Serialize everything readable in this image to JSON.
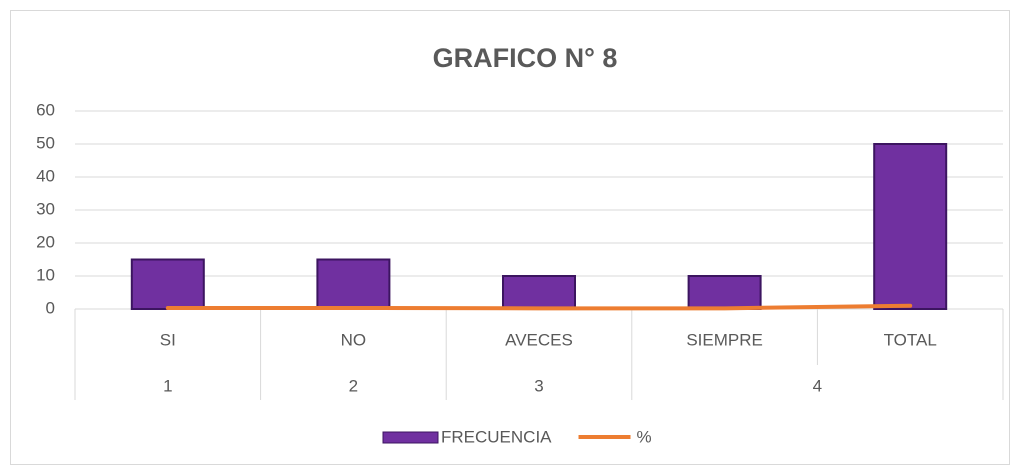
{
  "chart_data": {
    "type": "bar-line",
    "title": "GRAFICO N° 8",
    "categories": [
      "SI",
      "NO",
      "AVECES",
      "SIEMPRE",
      "TOTAL"
    ],
    "group_labels": [
      "1",
      "2",
      "3",
      "4"
    ],
    "group_sizes": [
      1,
      1,
      1,
      2
    ],
    "series": [
      {
        "name": "FRECUENCIA",
        "type": "bar",
        "color": "#7030a0",
        "values": [
          15,
          15,
          10,
          10,
          50
        ]
      },
      {
        "name": "%",
        "type": "line",
        "color": "#ed7d31",
        "values": [
          0.3,
          0.3,
          0.2,
          0.2,
          1
        ]
      }
    ],
    "ylim": [
      0,
      60
    ],
    "yticks": [
      0,
      10,
      20,
      30,
      40,
      50,
      60
    ],
    "grid": true,
    "legend": "bottom"
  }
}
